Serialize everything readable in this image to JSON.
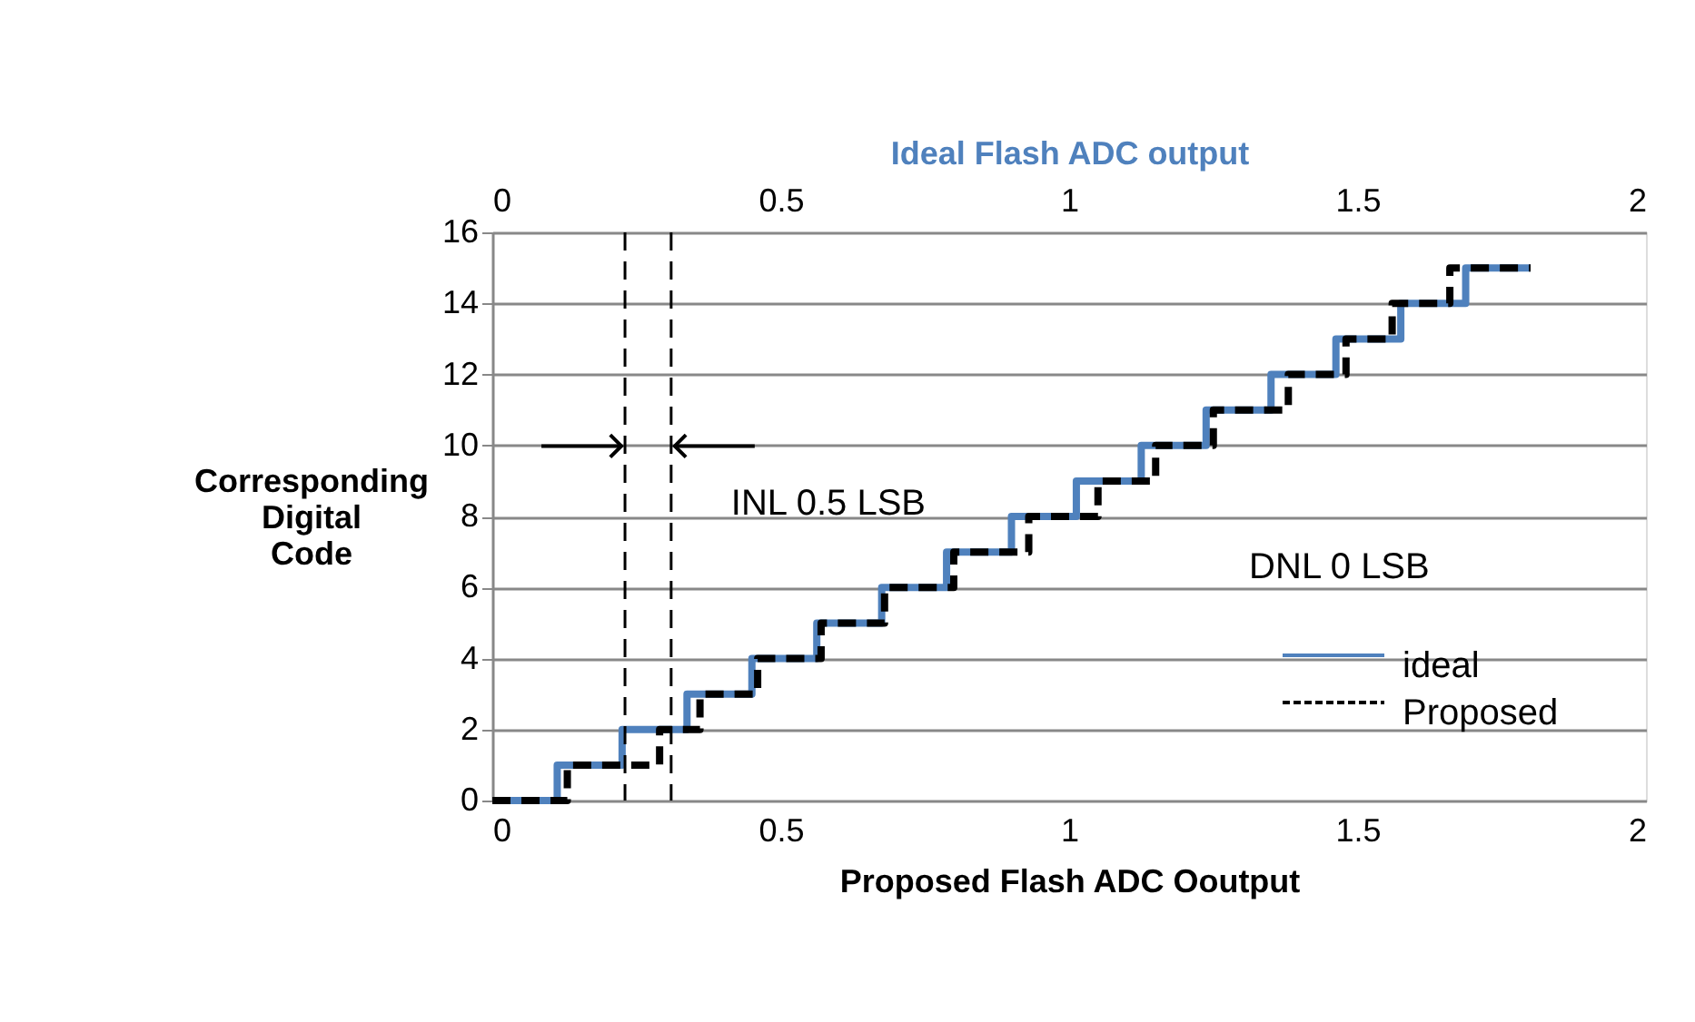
{
  "chart_data": {
    "type": "step",
    "xlabel": "Proposed Flash ADC Ooutput",
    "x2label": "Ideal  Flash ADC output",
    "ylabel": "Corresponding Digital Code",
    "xlim": [
      0,
      2
    ],
    "xticks": [
      0,
      0.5,
      1,
      1.5,
      2
    ],
    "x2lim": [
      0,
      2
    ],
    "x2ticks": [
      0,
      0.5,
      1,
      1.5,
      2
    ],
    "ylim": [
      0,
      16
    ],
    "yticks": [
      0,
      2,
      4,
      6,
      8,
      10,
      12,
      14,
      16
    ],
    "grid": "y",
    "legend": "bottom right",
    "series": [
      {
        "name": "ideal",
        "color": "#4f81bd",
        "line_style": "solid",
        "x": [
          0,
          0.1125,
          0.225,
          0.3375,
          0.45,
          0.5625,
          0.675,
          0.7875,
          0.9,
          1.0125,
          1.125,
          1.2375,
          1.35,
          1.4625,
          1.575,
          1.6875,
          1.8
        ],
        "values": [
          0,
          1,
          2,
          3,
          4,
          5,
          6,
          7,
          8,
          9,
          10,
          11,
          12,
          13,
          14,
          15,
          15
        ]
      },
      {
        "name": "Proposed",
        "color": "#000000",
        "line_style": "dashed",
        "x": [
          0,
          0.13,
          0.29,
          0.36,
          0.46,
          0.57,
          0.68,
          0.8,
          0.93,
          1.05,
          1.15,
          1.25,
          1.38,
          1.48,
          1.56,
          1.66,
          1.8
        ],
        "values": [
          0,
          1,
          2,
          3,
          4,
          5,
          6,
          7,
          8,
          9,
          10,
          11,
          12,
          13,
          14,
          15,
          15
        ]
      }
    ],
    "ref_lines": [
      {
        "axis": "x",
        "value": 0.23,
        "color": "#000000",
        "line_style": "dashed"
      },
      {
        "axis": "x",
        "value": 0.31,
        "color": "#000000",
        "line_style": "dashed"
      }
    ],
    "annotations": [
      {
        "text": "INL 0.5 LSB",
        "x": 0.31,
        "y": 10
      },
      "DNL 0 LSB"
    ]
  }
}
